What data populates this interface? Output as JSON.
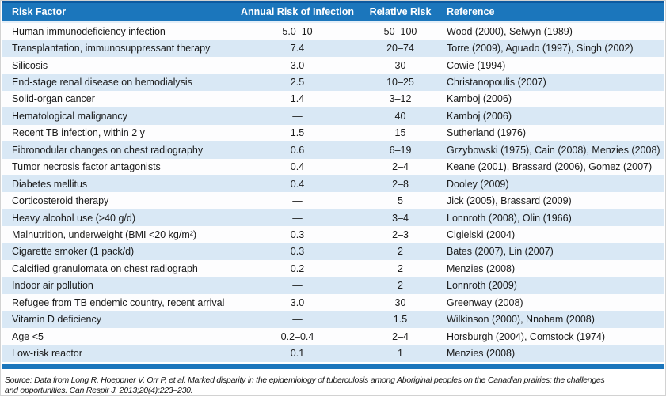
{
  "table": {
    "columns": [
      "Risk Factor",
      "Annual Risk of Infection",
      "Relative Risk",
      "Reference"
    ],
    "rows": [
      {
        "risk_factor": "Human immunodeficiency infection",
        "annual_risk": "5.0–10",
        "relative_risk": "50–100",
        "reference": "Wood (2000), Selwyn (1989)"
      },
      {
        "risk_factor": "Transplantation, immunosuppressant therapy",
        "annual_risk": "7.4",
        "relative_risk": "20–74",
        "reference": "Torre (2009), Aguado (1997), Singh (2002)"
      },
      {
        "risk_factor": "Silicosis",
        "annual_risk": "3.0",
        "relative_risk": "30",
        "reference": "Cowie (1994)"
      },
      {
        "risk_factor": "End-stage renal disease on hemodialysis",
        "annual_risk": "2.5",
        "relative_risk": "10–25",
        "reference": "Christanopoulis (2007)"
      },
      {
        "risk_factor": "Solid-organ cancer",
        "annual_risk": "1.4",
        "relative_risk": "3–12",
        "reference": "Kamboj (2006)"
      },
      {
        "risk_factor": "Hematological malignancy",
        "annual_risk": "—",
        "relative_risk": "40",
        "reference": "Kamboj (2006)"
      },
      {
        "risk_factor": "Recent TB infection, within 2 y",
        "annual_risk": "1.5",
        "relative_risk": "15",
        "reference": "Sutherland (1976)"
      },
      {
        "risk_factor": "Fibronodular changes on chest radiography",
        "annual_risk": "0.6",
        "relative_risk": "6–19",
        "reference": "Grzybowski (1975), Cain (2008), Menzies (2008)"
      },
      {
        "risk_factor": "Tumor necrosis factor antagonists",
        "annual_risk": "0.4",
        "relative_risk": "2–4",
        "reference": "Keane (2001), Brassard (2006), Gomez (2007)"
      },
      {
        "risk_factor": "Diabetes mellitus",
        "annual_risk": "0.4",
        "relative_risk": "2–8",
        "reference": "Dooley (2009)"
      },
      {
        "risk_factor": "Corticosteroid therapy",
        "annual_risk": "—",
        "relative_risk": "5",
        "reference": "Jick (2005), Brassard (2009)"
      },
      {
        "risk_factor": "Heavy alcohol use (>40 g/d)",
        "annual_risk": "—",
        "relative_risk": "3–4",
        "reference": "Lonnroth (2008), Olin (1966)"
      },
      {
        "risk_factor": "Malnutrition, underweight (BMI <20 kg/m²)",
        "annual_risk": "0.3",
        "relative_risk": "2–3",
        "reference": "Cigielski (2004)"
      },
      {
        "risk_factor": "Cigarette smoker (1 pack/d)",
        "annual_risk": "0.3",
        "relative_risk": "2",
        "reference": "Bates (2007), Lin (2007)"
      },
      {
        "risk_factor": "Calcified granulomata on chest radiograph",
        "annual_risk": "0.2",
        "relative_risk": "2",
        "reference": "Menzies (2008)"
      },
      {
        "risk_factor": "Indoor air pollution",
        "annual_risk": "—",
        "relative_risk": "2",
        "reference": "Lonnroth (2009)"
      },
      {
        "risk_factor": "Refugee from TB endemic country, recent arrival",
        "annual_risk": "3.0",
        "relative_risk": "30",
        "reference": "Greenway (2008)"
      },
      {
        "risk_factor": "Vitamin D deficiency",
        "annual_risk": "—",
        "relative_risk": "1.5",
        "reference": "Wilkinson (2000), Nnoham (2008)"
      },
      {
        "risk_factor": "Age <5",
        "annual_risk": "0.2–0.4",
        "relative_risk": "2–4",
        "reference": "Horsburgh (2004), Comstock (1974)"
      },
      {
        "risk_factor": "Low-risk reactor",
        "annual_risk": "0.1",
        "relative_risk": "1",
        "reference": "Menzies (2008)"
      }
    ]
  },
  "source": {
    "line1": "Source: Data from Long R, Hoeppner V, Orr P, et al. Marked disparity in the epidemiology of tuberculosis among Aboriginal peoples on the Canadian prairies: the challenges",
    "line2": "and opportunities. Can Respir J. 2013;20(4):223–230."
  },
  "colors": {
    "header_bg": "#1b76bc",
    "top_border": "#0d5aa0",
    "row_stripe": "#d9e8f5",
    "row_plain": "#fdfdfe",
    "header_text": "#ffffff",
    "body_text": "#1a1a1a"
  }
}
